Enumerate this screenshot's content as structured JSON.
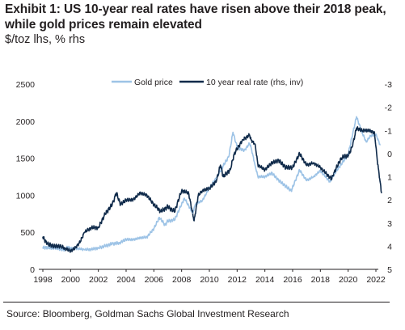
{
  "header": {
    "title": "Exhibit 1: US 10-year real rates have risen above their 2018 peak, while gold prices remain elevated",
    "subtitle": "$/toz lhs, % rhs"
  },
  "footer": {
    "source": "Source: Bloomberg, Goldman Sachs Global Investment Research"
  },
  "chart_data": {
    "type": "line",
    "title": "Exhibit 1: US 10-year real rates have risen above their 2018 peak, while gold prices remain elevated",
    "subtitle": "$/toz lhs, % rhs",
    "xlim": [
      1998,
      2022
    ],
    "x_ticks": [
      "1998",
      "2000",
      "2002",
      "2004",
      "2006",
      "2008",
      "2010",
      "2012",
      "2014",
      "2016",
      "2018",
      "2020",
      "2022"
    ],
    "y_left": {
      "lim": [
        0,
        2500
      ],
      "ticks": [
        "0",
        "500",
        "1000",
        "1500",
        "2000",
        "2500"
      ],
      "unit": "$/toz"
    },
    "y_right": {
      "lim": [
        5,
        -3
      ],
      "inverted": true,
      "ticks": [
        "5",
        "4",
        "3",
        "2",
        "1",
        "0",
        "-1",
        "-2",
        "-3"
      ],
      "unit": "%"
    },
    "legend_position": "top-center",
    "grid": false,
    "colors": {
      "gold": "#9dc3e6",
      "real_rate": "#0f2a4a"
    },
    "series": [
      {
        "name": "Gold price",
        "axis": "left",
        "points": [
          [
            1998.0,
            295
          ],
          [
            1998.5,
            292
          ],
          [
            1999.0,
            287
          ],
          [
            1999.5,
            260
          ],
          [
            1999.8,
            300
          ],
          [
            2000.0,
            285
          ],
          [
            2000.5,
            282
          ],
          [
            2001.0,
            265
          ],
          [
            2001.5,
            270
          ],
          [
            2002.0,
            290
          ],
          [
            2002.5,
            315
          ],
          [
            2003.0,
            345
          ],
          [
            2003.5,
            355
          ],
          [
            2004.0,
            405
          ],
          [
            2004.5,
            400
          ],
          [
            2005.0,
            425
          ],
          [
            2005.5,
            435
          ],
          [
            2006.0,
            550
          ],
          [
            2006.4,
            700
          ],
          [
            2006.8,
            600
          ],
          [
            2007.0,
            650
          ],
          [
            2007.5,
            670
          ],
          [
            2008.0,
            880
          ],
          [
            2008.2,
            960
          ],
          [
            2008.8,
            760
          ],
          [
            2009.0,
            880
          ],
          [
            2009.5,
            930
          ],
          [
            2010.0,
            1100
          ],
          [
            2010.5,
            1230
          ],
          [
            2011.0,
            1400
          ],
          [
            2011.4,
            1520
          ],
          [
            2011.7,
            1850
          ],
          [
            2012.0,
            1650
          ],
          [
            2012.5,
            1600
          ],
          [
            2012.9,
            1700
          ],
          [
            2013.0,
            1650
          ],
          [
            2013.3,
            1400
          ],
          [
            2013.5,
            1250
          ],
          [
            2014.0,
            1250
          ],
          [
            2014.5,
            1300
          ],
          [
            2015.0,
            1200
          ],
          [
            2015.9,
            1060
          ],
          [
            2016.5,
            1340
          ],
          [
            2017.0,
            1200
          ],
          [
            2017.5,
            1250
          ],
          [
            2018.0,
            1330
          ],
          [
            2018.7,
            1180
          ],
          [
            2019.0,
            1290
          ],
          [
            2019.5,
            1420
          ],
          [
            2020.0,
            1550
          ],
          [
            2020.6,
            2060
          ],
          [
            2021.0,
            1850
          ],
          [
            2021.3,
            1720
          ],
          [
            2021.6,
            1800
          ],
          [
            2022.0,
            1820
          ],
          [
            2022.3,
            1680
          ]
        ]
      },
      {
        "name": "10 year real rate (rhs, inv)",
        "axis": "right",
        "points": [
          [
            1998.0,
            3.6
          ],
          [
            1998.3,
            3.9
          ],
          [
            1998.8,
            4.0
          ],
          [
            1999.3,
            4.0
          ],
          [
            1999.6,
            4.1
          ],
          [
            2000.0,
            4.2
          ],
          [
            2000.3,
            4.1
          ],
          [
            2000.7,
            3.8
          ],
          [
            2001.0,
            3.4
          ],
          [
            2001.5,
            3.2
          ],
          [
            2002.0,
            3.2
          ],
          [
            2002.5,
            2.6
          ],
          [
            2003.0,
            2.2
          ],
          [
            2003.3,
            1.7
          ],
          [
            2003.6,
            2.2
          ],
          [
            2004.0,
            2.0
          ],
          [
            2004.5,
            2.0
          ],
          [
            2005.0,
            1.7
          ],
          [
            2005.5,
            1.8
          ],
          [
            2006.0,
            2.2
          ],
          [
            2006.5,
            2.5
          ],
          [
            2007.0,
            2.3
          ],
          [
            2007.5,
            2.5
          ],
          [
            2008.0,
            1.6
          ],
          [
            2008.5,
            1.7
          ],
          [
            2008.9,
            2.9
          ],
          [
            2009.2,
            1.8
          ],
          [
            2009.5,
            1.6
          ],
          [
            2010.0,
            1.5
          ],
          [
            2010.5,
            1.2
          ],
          [
            2010.8,
            0.5
          ],
          [
            2011.0,
            1.0
          ],
          [
            2011.5,
            0.7
          ],
          [
            2011.8,
            0.0
          ],
          [
            2012.0,
            -0.2
          ],
          [
            2012.4,
            -0.6
          ],
          [
            2012.9,
            -0.8
          ],
          [
            2013.0,
            -0.6
          ],
          [
            2013.3,
            -0.4
          ],
          [
            2013.5,
            0.5
          ],
          [
            2014.0,
            0.7
          ],
          [
            2014.5,
            0.4
          ],
          [
            2015.0,
            0.3
          ],
          [
            2015.5,
            0.6
          ],
          [
            2016.0,
            0.6
          ],
          [
            2016.5,
            0.0
          ],
          [
            2017.0,
            0.5
          ],
          [
            2017.5,
            0.4
          ],
          [
            2018.0,
            0.6
          ],
          [
            2018.8,
            1.1
          ],
          [
            2019.0,
            0.8
          ],
          [
            2019.5,
            0.2
          ],
          [
            2019.8,
            0.1
          ],
          [
            2020.0,
            0.1
          ],
          [
            2020.3,
            -0.3
          ],
          [
            2020.6,
            -1.1
          ],
          [
            2021.0,
            -1.0
          ],
          [
            2021.5,
            -1.0
          ],
          [
            2021.9,
            -0.9
          ],
          [
            2022.1,
            0.3
          ],
          [
            2022.3,
            1.2
          ],
          [
            2022.4,
            1.7
          ]
        ]
      }
    ]
  }
}
